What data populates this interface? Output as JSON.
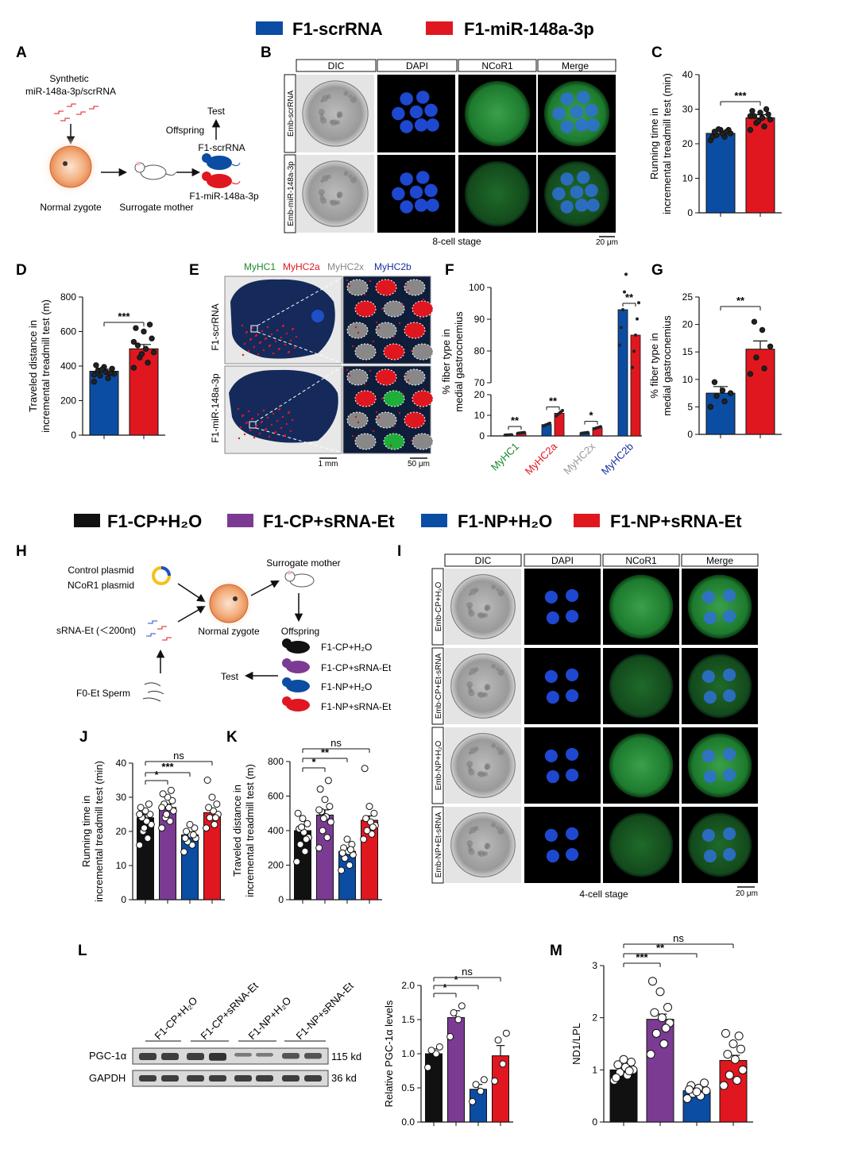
{
  "colors": {
    "blue": "#0b4da2",
    "red": "#e0171f",
    "black": "#111111",
    "purple": "#7b3b93"
  },
  "legend_top": [
    {
      "label": "F1-scrRNA",
      "color": "#0b4da2"
    },
    {
      "label": "F1-miR-148a-3p",
      "color": "#e0171f"
    }
  ],
  "legend_mid": [
    {
      "label": "F1-CP+H₂O",
      "color": "#111111"
    },
    {
      "label": "F1-CP+sRNA-Et",
      "color": "#7b3b93"
    },
    {
      "label": "F1-NP+H₂O",
      "color": "#0b4da2"
    },
    {
      "label": "F1-NP+sRNA-Et",
      "color": "#e0171f"
    }
  ],
  "panel_letters": [
    "A",
    "B",
    "C",
    "D",
    "E",
    "F",
    "G",
    "H",
    "I",
    "J",
    "K",
    "L",
    "M"
  ],
  "schemeA": {
    "synthetic": "Synthetic",
    "mirna": "miR-148a-3p/scrRNA",
    "zygote": "Normal zygote",
    "surrogate": "Surrogate mother",
    "test": "Test",
    "offspring": "Offspring",
    "f1_scr": "F1-scrRNA",
    "f1_mir": "F1-miR-148a-3p"
  },
  "panelB": {
    "columns": [
      "DIC",
      "DAPI",
      "NCoR1",
      "Merge"
    ],
    "rows": [
      "Emb-scrRNA",
      "Emb-miR-148a-3p"
    ],
    "stage": "8-cell stage",
    "scale": "20 μm"
  },
  "panelE": {
    "stains": [
      {
        "label": "MyHC1",
        "color": "#1a8a2a"
      },
      {
        "label": "MyHC2a",
        "color": "#e0171f"
      },
      {
        "label": "MyHC2x",
        "color": "#888888"
      },
      {
        "label": "MyHC2b",
        "color": "#1a2fa0"
      }
    ],
    "rows": [
      "F1-scrRNA",
      "F1-miR-148a-3p"
    ],
    "scale1": "1 mm",
    "scale2": "50 μm"
  },
  "schemeH": {
    "control": "Control plasmid",
    "ncor1": "NCoR1 plasmid",
    "srna": "sRNA-Et (＜200nt)",
    "sperm": "F0-Et Sperm",
    "zygote": "Normal zygote",
    "surrogate": "Surrogate mother",
    "offspring": "Offspring",
    "test": "Test",
    "groups": [
      "F1-CP+H₂O",
      "F1-CP+sRNA-Et",
      "F1-NP+H₂O",
      "F1-NP+sRNA-Et"
    ]
  },
  "panelI": {
    "columns": [
      "DIC",
      "DAPI",
      "NCoR1",
      "Merge"
    ],
    "rows": [
      "Emb-CP+H₂O",
      "Emb-CP+Et-sRNA",
      "Emb-NP+H₂O",
      "Emb-NP+Et-sRNA"
    ],
    "stage": "4-cell stage",
    "scale": "20 μm"
  },
  "panelL": {
    "lanes": [
      "F1-CP+H₂O",
      "F1-CP+sRNA-Et",
      "F1-NP+H₂O",
      "F1-NP+sRNA-Et"
    ],
    "bands": [
      {
        "label": "PGC-1α",
        "size": "115 kd"
      },
      {
        "label": "GAPDH",
        "size": "36 kd"
      }
    ]
  },
  "chart_data": [
    {
      "id": "C",
      "type": "bar",
      "ylabel": [
        "Running time in",
        "incremental treadmill test (min)"
      ],
      "ylim": [
        0,
        40
      ],
      "yticks": [
        0,
        10,
        20,
        30,
        40
      ],
      "categories": [
        "F1-scrRNA",
        "F1-miR-148a-3p"
      ],
      "values": [
        23,
        27.5
      ],
      "errors": [
        0.6,
        0.9
      ],
      "points": [
        [
          21,
          22,
          22.5,
          23,
          23,
          23.5,
          24,
          24,
          22,
          23.5,
          24.2
        ],
        [
          24,
          25,
          26,
          27,
          27.5,
          28,
          28.5,
          29,
          29.5,
          30,
          26.5,
          28
        ]
      ],
      "significance": [
        {
          "pair": [
            0,
            1
          ],
          "label": "***"
        }
      ]
    },
    {
      "id": "D",
      "type": "bar",
      "ylabel": [
        "Traveled distance in",
        "incremental treadmill test (m)"
      ],
      "ylim": [
        0,
        800
      ],
      "yticks": [
        0,
        200,
        400,
        600,
        800
      ],
      "categories": [
        "F1-scrRNA",
        "F1-miR-148a-3p"
      ],
      "values": [
        370,
        500
      ],
      "errors": [
        12,
        25
      ],
      "points": [
        [
          310,
          330,
          345,
          355,
          365,
          375,
          385,
          395,
          405,
          360,
          380,
          350
        ],
        [
          390,
          420,
          450,
          480,
          500,
          520,
          560,
          600,
          620,
          640,
          470,
          540
        ]
      ],
      "significance": [
        {
          "pair": [
            0,
            1
          ],
          "label": "***"
        }
      ]
    },
    {
      "id": "F",
      "type": "bar",
      "ylabel": [
        "% fiber type in",
        "medial gastrocnemius"
      ],
      "ylim": [
        0,
        100
      ],
      "yticks": [
        0,
        10,
        20,
        70,
        80,
        90,
        100
      ],
      "categories": [
        "MyHC1",
        "MyHC2a",
        "MyHC2x",
        "MyHC2b"
      ],
      "series": [
        {
          "values": [
            0.5,
            5.5,
            1.5,
            93
          ]
        },
        {
          "values": [
            1.5,
            11,
            4,
            85
          ]
        }
      ],
      "significance": [
        {
          "group": 0,
          "label": "**"
        },
        {
          "group": 1,
          "label": "**"
        },
        {
          "group": 2,
          "label": "*"
        },
        {
          "group": 3,
          "label": "**"
        }
      ]
    },
    {
      "id": "G",
      "type": "bar",
      "ylabel": [
        "% fiber type in",
        "medial gastrocnemius"
      ],
      "ylim": [
        0,
        25
      ],
      "yticks": [
        0,
        5,
        10,
        15,
        20,
        25
      ],
      "categories": [
        "F1-scrRNA",
        "F1-miR-148a-3p"
      ],
      "values": [
        7.5,
        15.5
      ],
      "errors": [
        1.2,
        1.5
      ],
      "points": [
        [
          5,
          6,
          7,
          7.5,
          8,
          9.5
        ],
        [
          11,
          12,
          14,
          16,
          19,
          20.5
        ]
      ],
      "significance": [
        {
          "pair": [
            0,
            1
          ],
          "label": "**"
        }
      ]
    },
    {
      "id": "J",
      "type": "bar",
      "ylabel": [
        "Running time in",
        "incremental treadmill test (min)"
      ],
      "ylim": [
        0,
        40
      ],
      "yticks": [
        0,
        10,
        20,
        30,
        40
      ],
      "categories": [
        "F1-CP+H₂O",
        "F1-CP+sRNA-Et",
        "F1-NP+H₂O",
        "F1-NP+sRNA-Et"
      ],
      "values": [
        24,
        27,
        19,
        25.5
      ],
      "errors": [
        1,
        1,
        0.8,
        1
      ],
      "points": [
        [
          16,
          18,
          20,
          22,
          23,
          24,
          25,
          26,
          27,
          28,
          21,
          25
        ],
        [
          21,
          23,
          24,
          26,
          27,
          28,
          29,
          30,
          31,
          32,
          25,
          27
        ],
        [
          14,
          16,
          17,
          18,
          19,
          20,
          21,
          22,
          18,
          19
        ],
        [
          21,
          22,
          24,
          25,
          26,
          27,
          28,
          30,
          35,
          24
        ]
      ],
      "significance": [
        {
          "pair": [
            0,
            1
          ],
          "label": "*"
        },
        {
          "pair": [
            0,
            2
          ],
          "label": "***"
        },
        {
          "pair": [
            0,
            3
          ],
          "label": "ns"
        }
      ]
    },
    {
      "id": "K",
      "type": "bar",
      "ylabel": [
        "Traveled distance in",
        "incremental treadmill test (m)"
      ],
      "ylim": [
        0,
        800
      ],
      "yticks": [
        0,
        200,
        400,
        600,
        800
      ],
      "categories": [
        "F1-CP+H₂O",
        "F1-CP+sRNA-Et",
        "F1-NP+H₂O",
        "F1-NP+sRNA-Et"
      ],
      "values": [
        400,
        490,
        280,
        460
      ],
      "errors": [
        30,
        30,
        20,
        25
      ],
      "points": [
        [
          220,
          280,
          320,
          360,
          390,
          410,
          440,
          470,
          500,
          350,
          420
        ],
        [
          300,
          360,
          400,
          450,
          480,
          510,
          540,
          580,
          640,
          690,
          470,
          520
        ],
        [
          170,
          200,
          240,
          260,
          280,
          300,
          320,
          350,
          270,
          290
        ],
        [
          350,
          380,
          400,
          430,
          450,
          470,
          500,
          540,
          760,
          420
        ]
      ],
      "significance": [
        {
          "pair": [
            0,
            1
          ],
          "label": "*"
        },
        {
          "pair": [
            0,
            2
          ],
          "label": "**"
        },
        {
          "pair": [
            0,
            3
          ],
          "label": "ns"
        }
      ]
    },
    {
      "id": "L",
      "type": "bar",
      "ylabel": [
        "Relative PGC-1α levels"
      ],
      "ylim": [
        0,
        2
      ],
      "yticks": [
        0,
        0.5,
        1.0,
        1.5,
        2.0
      ],
      "yticklabels": [
        "0.0",
        "0.5",
        "1.0",
        "1.5",
        "2.0"
      ],
      "categories": [
        "F1-CP+H₂O",
        "F1-CP+sRNA-Et",
        "F1-NP+H₂O",
        "F1-NP+sRNA-Et"
      ],
      "values": [
        1.0,
        1.53,
        0.48,
        0.97
      ],
      "errors": [
        0.07,
        0.1,
        0.07,
        0.15
      ],
      "points": [
        [
          0.8,
          1.0,
          1.05,
          1.1
        ],
        [
          1.25,
          1.5,
          1.6,
          1.7
        ],
        [
          0.3,
          0.45,
          0.55,
          0.62
        ],
        [
          0.6,
          0.85,
          1.2,
          1.3
        ]
      ],
      "significance": [
        {
          "pair": [
            0,
            1
          ],
          "label": "*"
        },
        {
          "pair": [
            0,
            2
          ],
          "label": "*"
        },
        {
          "pair": [
            0,
            3
          ],
          "label": "ns"
        }
      ]
    },
    {
      "id": "M",
      "type": "bar",
      "ylabel": [
        "ND1/LPL"
      ],
      "ylim": [
        0,
        3
      ],
      "yticks": [
        0,
        1,
        2,
        3
      ],
      "categories": [
        "F1-CP+H₂O",
        "F1-CP+sRNA-Et",
        "F1-NP+H₂O",
        "F1-NP+sRNA-Et"
      ],
      "values": [
        1.0,
        1.97,
        0.6,
        1.18
      ],
      "errors": [
        0.05,
        0.1,
        0.03,
        0.1
      ],
      "points": [
        [
          0.8,
          0.9,
          0.95,
          1.0,
          1.05,
          1.1,
          1.15,
          1.2,
          0.85,
          0.98
        ],
        [
          1.3,
          1.5,
          1.7,
          1.9,
          2.0,
          2.1,
          2.2,
          2.5,
          2.7,
          1.8
        ],
        [
          0.45,
          0.5,
          0.55,
          0.6,
          0.65,
          0.7,
          0.75,
          0.58,
          0.62
        ],
        [
          0.7,
          0.8,
          0.9,
          1.0,
          1.2,
          1.3,
          1.4,
          1.5,
          1.7,
          1.65
        ]
      ],
      "significance": [
        {
          "pair": [
            0,
            1
          ],
          "label": "***"
        },
        {
          "pair": [
            0,
            2
          ],
          "label": "**"
        },
        {
          "pair": [
            0,
            3
          ],
          "label": "ns"
        }
      ]
    }
  ]
}
